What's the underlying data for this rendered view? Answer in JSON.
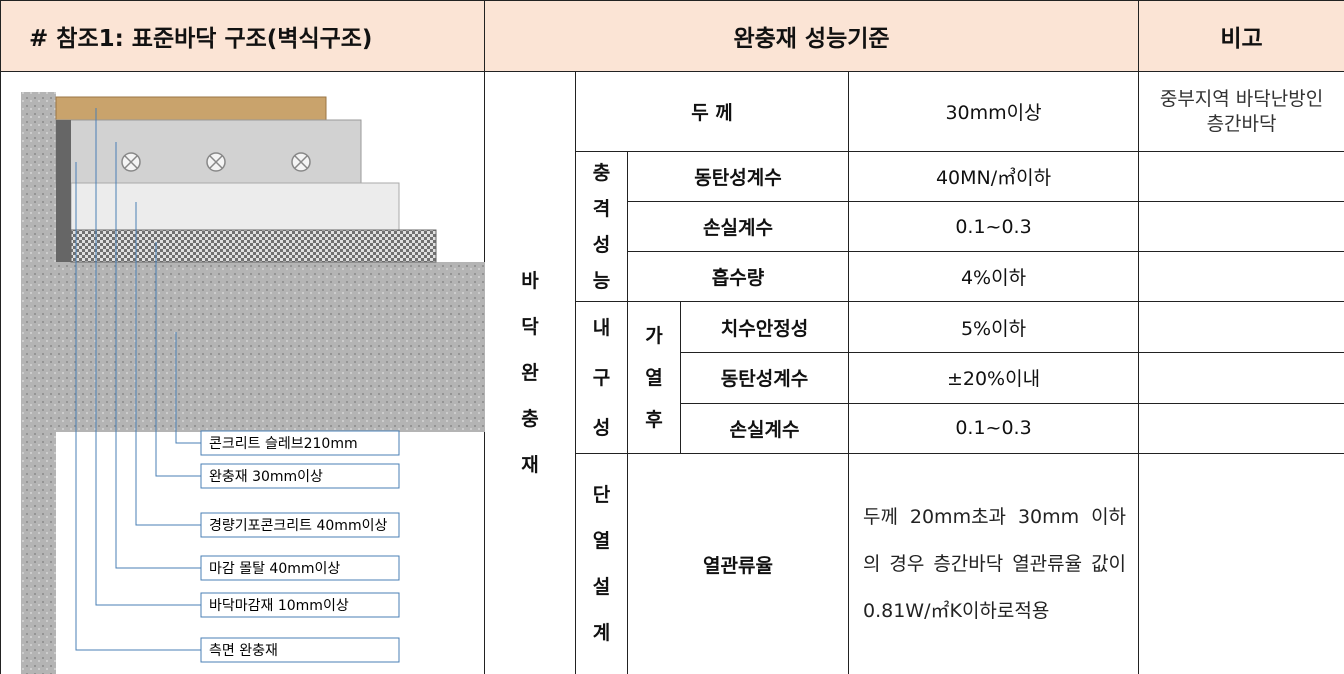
{
  "header": {
    "col1": "# 참조1: 표준바닥 구조(벽식구조)",
    "col2": "완충재 성능기준",
    "col3": "비고"
  },
  "diagram": {
    "labels": [
      "콘크리트 슬레브210mm",
      "완충재 30mm이상",
      "경량기포콘크리트 40mm이상",
      "마감 몰탈 40mm이상",
      "바닥마감재 10mm이상",
      "측면 완충재"
    ]
  },
  "table": {
    "group": "바닥완충재",
    "thickness": {
      "item": "두 께",
      "value": "30mm이상",
      "note": "중부지역 바닥난방인 층간바닥"
    },
    "impact": {
      "label": "충격성능",
      "rows": [
        {
          "item": "동탄성계수",
          "value": "40MN/㎥이하"
        },
        {
          "item": "손실계수",
          "value": "0.1~0.3"
        },
        {
          "item": "흡수량",
          "value": "4%이하"
        }
      ]
    },
    "durability": {
      "label": "내구성",
      "sublabel": "가열후",
      "rows": [
        {
          "item": "치수안정성",
          "value": "5%이하"
        },
        {
          "item": "동탄성계수",
          "value": "±20%이내"
        },
        {
          "item": "손실계수",
          "value": "0.1~0.3"
        }
      ]
    },
    "insulation": {
      "label": "단열설계",
      "item": "열관류율",
      "value": "두께 20mm초과 30mm 이하 의 경우 층간바닥 열관류율 값이 0.81W/㎡K이하로적용"
    }
  }
}
